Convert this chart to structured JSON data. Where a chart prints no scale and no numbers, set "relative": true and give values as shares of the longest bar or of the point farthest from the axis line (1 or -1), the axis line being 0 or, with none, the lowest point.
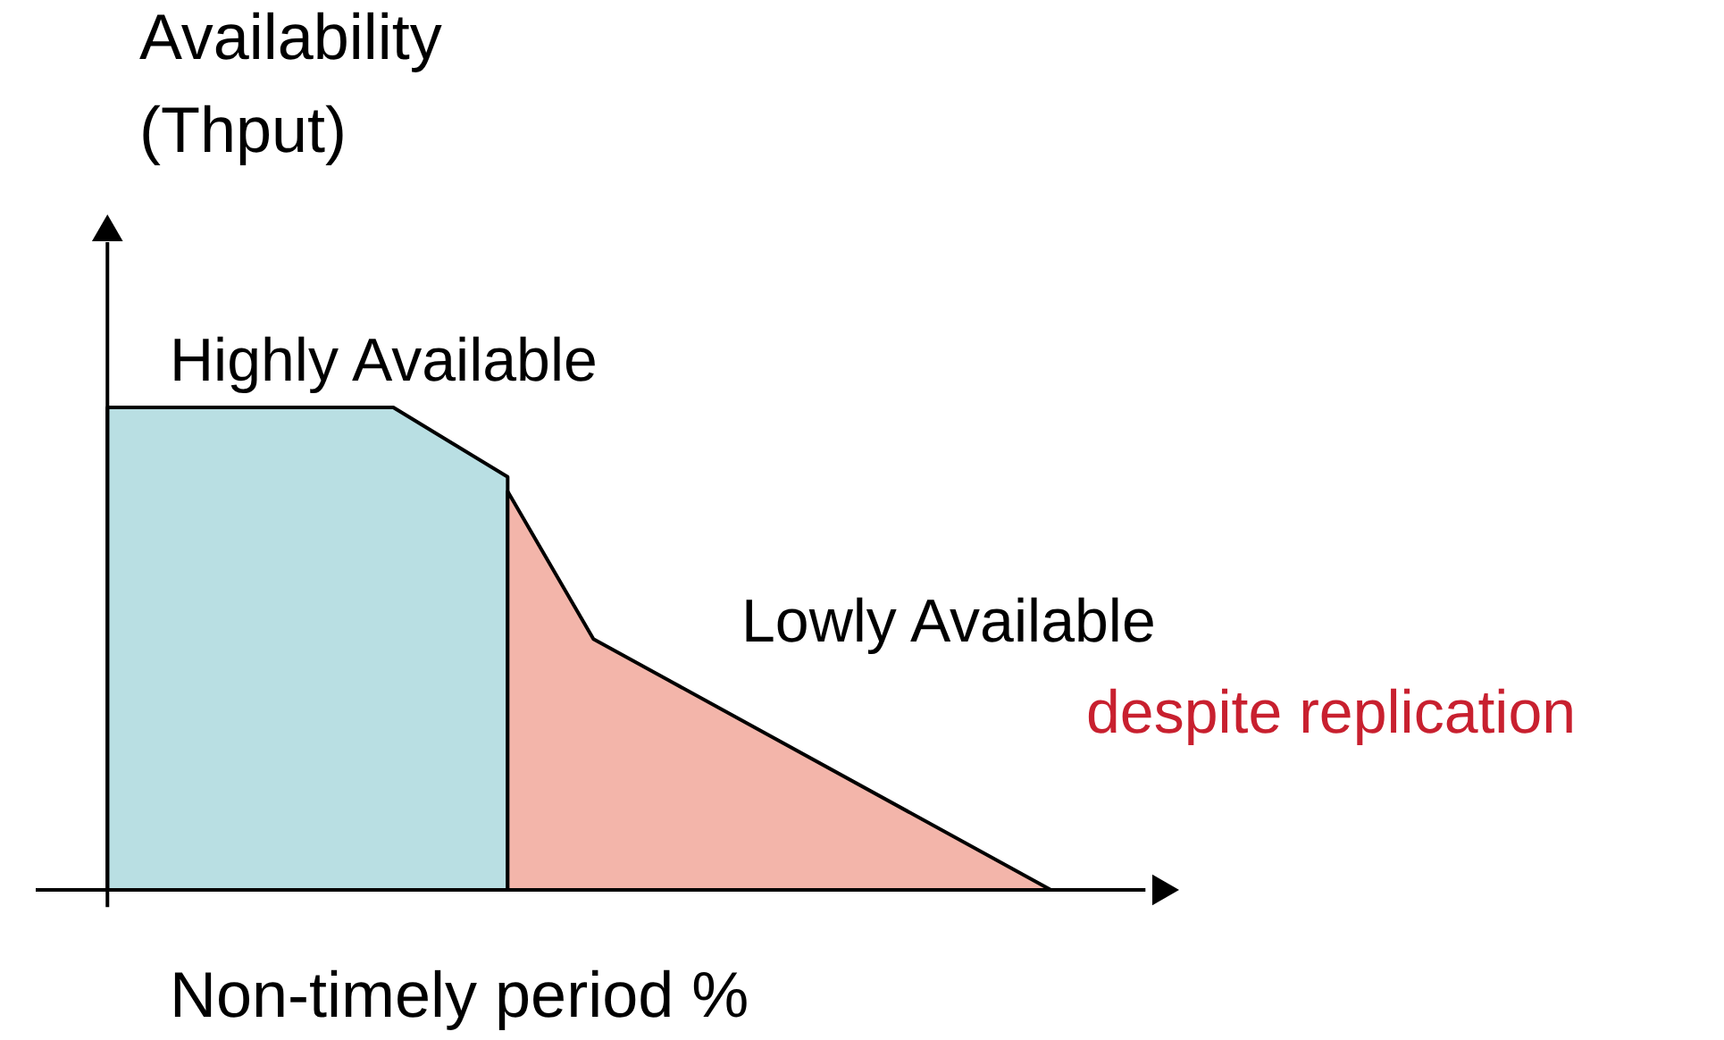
{
  "chart_data": {
    "type": "area",
    "relative": true,
    "ylabel": "Availability\n(Thput)",
    "xlabel": "Non-timely period %",
    "categories": [
      null,
      null,
      null,
      null,
      null,
      null,
      null,
      null,
      null,
      null,
      null,
      null,
      null,
      null,
      null,
      null,
      null,
      null,
      null,
      null,
      null,
      null,
      null,
      null,
      null,
      null,
      null,
      null,
      null,
      null,
      null,
      null,
      null,
      null
    ],
    "series": [
      {
        "color": "#b9dfe3",
        "values": [
          1,
          null,
          null,
          null,
          null,
          null,
          null,
          null,
          null,
          null,
          1,
          null,
          null,
          null,
          0.856,
          null,
          null,
          null,
          null,
          null,
          null,
          null,
          null,
          null,
          null,
          null,
          null,
          null,
          null,
          null,
          null,
          null,
          null,
          null
        ]
      },
      {
        "color": "#f3b5aa",
        "values": [
          null,
          null,
          null,
          null,
          null,
          null,
          null,
          null,
          null,
          null,
          null,
          null,
          null,
          null,
          0.826,
          null,
          null,
          0.52,
          null,
          null,
          null,
          null,
          null,
          null,
          null,
          null,
          null,
          null,
          null,
          null,
          null,
          null,
          null,
          0
        ]
      }
    ],
    "annotations": [
      "Highly Available",
      "Lowly Available",
      "despite replication"
    ]
  }
}
